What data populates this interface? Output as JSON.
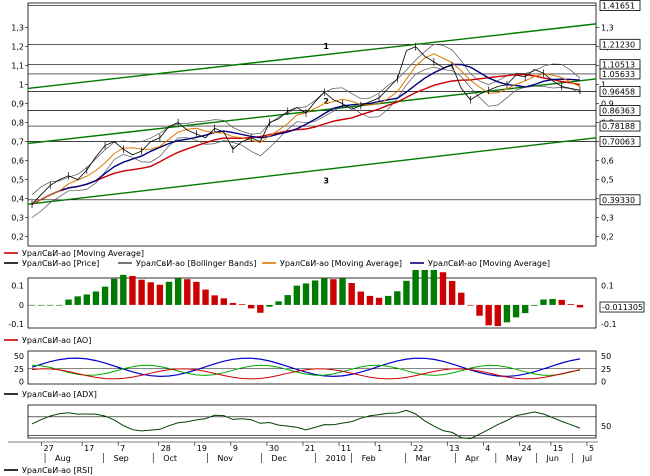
{
  "chart_data": [
    {
      "type": "line",
      "name": "price",
      "ylim": [
        0.15,
        1.43
      ],
      "yticks": [
        1.3,
        1.2,
        1.1,
        1.0,
        0.9,
        0.8,
        0.7,
        0.6,
        0.5,
        0.4,
        0.3,
        0.2
      ],
      "ytick_labels": [
        "1,3",
        "1,2",
        "1,1",
        "1",
        "0,9",
        "0,8",
        "0,7",
        "0,6",
        "0,5",
        "0,4",
        "0,3",
        "0,2"
      ],
      "hlines": [
        {
          "y": 1.41651,
          "label": "1.41651"
        },
        {
          "y": 1.2123,
          "label": "1.21230"
        },
        {
          "y": 1.10513,
          "label": "1.10513"
        },
        {
          "y": 1.05633,
          "label": "1.05633"
        },
        {
          "y": 0.96458,
          "label": "0.96458"
        },
        {
          "y": 0.86363,
          "label": "0.86363"
        },
        {
          "y": 0.78188,
          "label": "0.78188"
        },
        {
          "y": 0.70063,
          "label": "0.70063"
        },
        {
          "y": 0.3933,
          "label": "0.39330"
        }
      ],
      "channels": [
        {
          "label": "1",
          "start": [
            0,
            0.98
          ],
          "end": [
            100,
            1.32
          ]
        },
        {
          "label": "2",
          "start": [
            0,
            0.69
          ],
          "end": [
            100,
            1.03
          ]
        },
        {
          "label": "3",
          "start": [
            0,
            0.37
          ],
          "end": [
            100,
            0.72
          ]
        }
      ],
      "close": [
        0.37,
        0.42,
        0.47,
        0.5,
        0.52,
        0.5,
        0.55,
        0.62,
        0.68,
        0.7,
        0.66,
        0.63,
        0.65,
        0.7,
        0.72,
        0.78,
        0.8,
        0.76,
        0.74,
        0.72,
        0.77,
        0.75,
        0.66,
        0.7,
        0.72,
        0.7,
        0.8,
        0.82,
        0.86,
        0.88,
        0.85,
        0.91,
        0.96,
        0.92,
        0.9,
        0.87,
        0.89,
        0.91,
        0.93,
        0.98,
        1.03,
        1.18,
        1.2,
        1.15,
        1.12,
        1.09,
        1.1,
        0.98,
        0.92,
        0.95,
        0.97,
        0.99,
        1.0,
        1.05,
        1.04,
        1.08,
        1.06,
        1.02,
        0.99,
        0.98,
        0.97
      ],
      "legend": [
        {
          "text": "УралСвИ-ао [Moving Average]",
          "color": "#cc0000"
        },
        {
          "text": "УралСвИ-ао [Price]",
          "color": "#000000"
        },
        {
          "text": "УралСвИ-ао [Bollinger Bands]",
          "color": "#555555"
        },
        {
          "text": "УралСвИ-ао [Moving Average]",
          "color": "#e07800"
        },
        {
          "text": "УралСвИ-ао [Moving Average]",
          "color": "#000080"
        }
      ]
    },
    {
      "type": "bar",
      "name": "ao",
      "ylim": [
        -0.12,
        0.14
      ],
      "yticks_left": [
        "0.1",
        "0",
        "-0.1"
      ],
      "yticks_right": [
        "0.1",
        "0",
        "-0.1"
      ],
      "last_value_label": "-0.011305",
      "legend": {
        "text": "УралСвИ-ао [AO]",
        "color": "#cc0000"
      }
    },
    {
      "type": "line",
      "name": "adx",
      "ylim": [
        -5,
        60
      ],
      "yticks_left": [
        "50",
        "25",
        "0"
      ],
      "yticks_right": [
        "50",
        "25",
        "0"
      ],
      "legend": {
        "text": "УралСвИ-ао [ADX]",
        "color": "#000000"
      }
    },
    {
      "type": "line",
      "name": "rsi",
      "ylim": [
        25,
        95
      ],
      "yticks_right": [
        "50"
      ],
      "legend": {
        "text": "УралСвИ-ао [RSI]",
        "color": "#000000"
      }
    }
  ],
  "xaxis": {
    "days": [
      {
        "label": "27",
        "pos": 0.03
      },
      {
        "label": "17",
        "pos": 0.12
      },
      {
        "label": "7",
        "pos": 0.2
      },
      {
        "label": "28",
        "pos": 0.29
      },
      {
        "label": "19",
        "pos": 0.37
      },
      {
        "label": "9",
        "pos": 0.45
      },
      {
        "label": "30",
        "pos": 0.53
      },
      {
        "label": "21",
        "pos": 0.61
      },
      {
        "label": "11",
        "pos": 0.69
      },
      {
        "label": "1",
        "pos": 0.77
      },
      {
        "label": "22",
        "pos": 0.85
      },
      {
        "label": "13",
        "pos": 0.93
      },
      {
        "label": "4",
        "pos": 1.01
      },
      {
        "label": "24",
        "pos": 1.09
      },
      {
        "label": "15",
        "pos": 1.16
      },
      {
        "label": "5",
        "pos": 1.24
      }
    ],
    "months": [
      {
        "label": "Aug",
        "pos": 0.06
      },
      {
        "label": "Sep",
        "pos": 0.19
      },
      {
        "label": "Oct",
        "pos": 0.3
      },
      {
        "label": "Nov",
        "pos": 0.42
      },
      {
        "label": "Dec",
        "pos": 0.54
      },
      {
        "label": "2010",
        "pos": 0.66
      },
      {
        "label": "Feb",
        "pos": 0.74
      },
      {
        "label": "Mar",
        "pos": 0.86
      },
      {
        "label": "Apr",
        "pos": 0.97
      },
      {
        "label": "May",
        "pos": 1.06
      },
      {
        "label": "Jun",
        "pos": 1.15
      },
      {
        "label": "Jul",
        "pos": 1.23
      }
    ]
  }
}
